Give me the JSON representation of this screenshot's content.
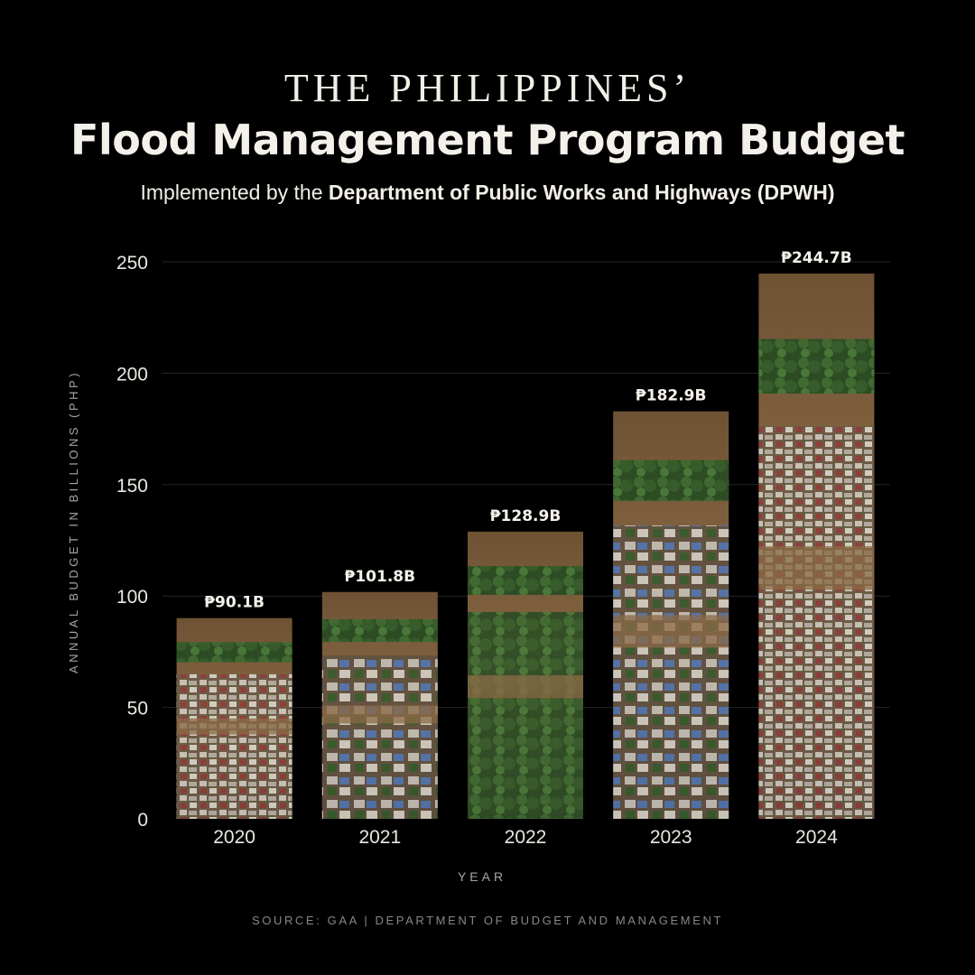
{
  "header": {
    "kicker": "THE PHILIPPINES’",
    "title": "Flood Management Program Budget",
    "subtitle_prefix": "Implemented by the ",
    "subtitle_agency": "Department of Public Works and Highways (DPWH)"
  },
  "chart_data": {
    "type": "bar",
    "categories": [
      "2020",
      "2021",
      "2022",
      "2023",
      "2024"
    ],
    "values": [
      90.1,
      101.8,
      128.9,
      182.9,
      244.7
    ],
    "data_labels": [
      "₱90.1B",
      "₱101.8B",
      "₱128.9B",
      "₱182.9B",
      "₱244.7B"
    ],
    "ylabel": "ANNUAL BUDGET IN BILLIONS (PHP)",
    "xlabel": "YEAR",
    "ylim": [
      0,
      250
    ],
    "yticks": [
      0,
      50,
      100,
      150,
      200,
      250
    ],
    "grid": true,
    "legend": "none",
    "bar_fill": "aerial flood imagery",
    "colors": {
      "background": "#000000",
      "gridline": "#2a2a2a",
      "text": "#f2efe8",
      "water": "#7a5a3a",
      "roof_blue": "#4d76b8",
      "roof_red": "#a0405a",
      "foliage": "#2f5a2a"
    }
  },
  "footer": {
    "source": "SOURCE: GAA | DEPARTMENT OF BUDGET AND MANAGEMENT"
  }
}
